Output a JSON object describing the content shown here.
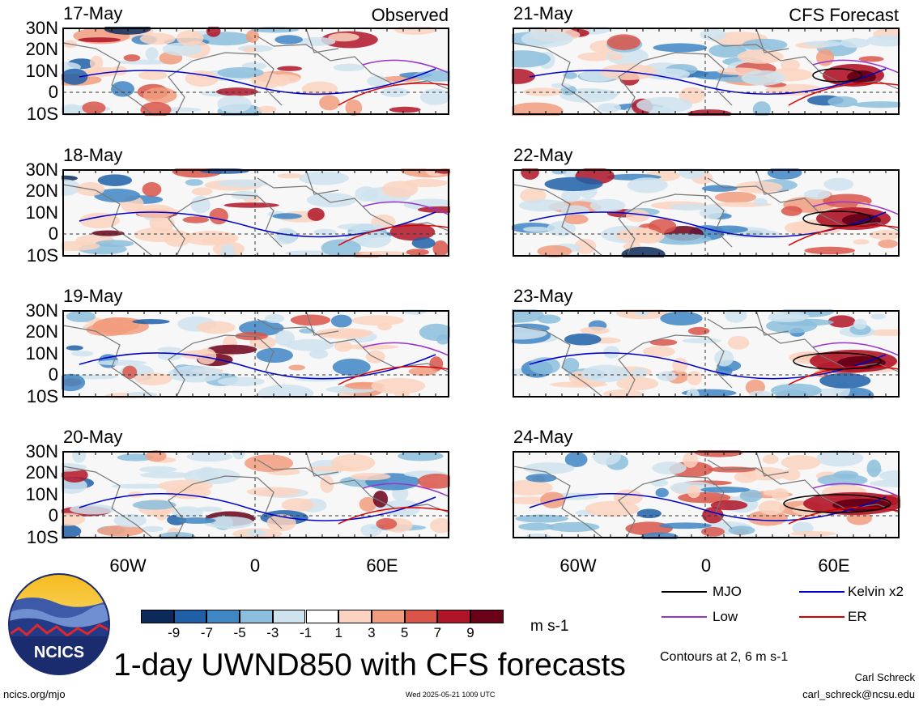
{
  "panels_left_title": "Observed",
  "panels_right_title": "CFS Forecast",
  "left_dates": [
    "17-May",
    "18-May",
    "19-May",
    "20-May"
  ],
  "right_dates": [
    "21-May",
    "22-May",
    "23-May",
    "24-May"
  ],
  "lat_labels": [
    "30N",
    "20N",
    "10N",
    "0",
    "10S"
  ],
  "lon_labels": [
    "60W",
    "0",
    "60E"
  ],
  "legend": {
    "mjo": "MJO",
    "kelvin": "Kelvin x2",
    "low": "Low",
    "er": "ER",
    "contours_note": "Contours at 2, 6 m s-1",
    "colors": {
      "mjo": "#000000",
      "kelvin": "#0000cc",
      "low": "#9933cc",
      "er": "#dd0000"
    }
  },
  "colorbar": {
    "labels": [
      "-9",
      "-7",
      "-5",
      "-3",
      "-1",
      "1",
      "3",
      "5",
      "7",
      "9"
    ],
    "colors": [
      "#0b2a5a",
      "#1f5fa8",
      "#3f86c4",
      "#8cbedd",
      "#cfe3ef",
      "#ffffff",
      "#fbd3c0",
      "#f19c7e",
      "#d9554a",
      "#b01427",
      "#6b0019"
    ],
    "units": "m s-1"
  },
  "title": "1-day UWND850 with CFS forecasts",
  "logo_text": "NCICS",
  "footer": {
    "url": "ncics.org/mjo",
    "timestamp": "Wed 2025-05-21 1009 UTC",
    "author": "Carl Schreck",
    "email": "carl_schreck@ncsu.edu"
  }
}
